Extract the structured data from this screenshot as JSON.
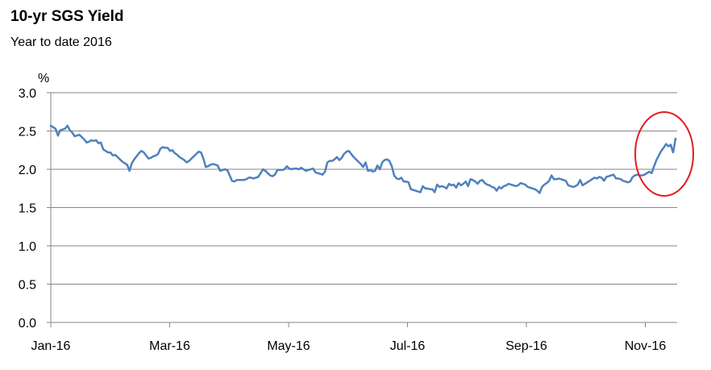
{
  "chart_data": {
    "type": "line",
    "title": "10-yr SGS Yield",
    "subtitle": "Year to date 2016",
    "ylabel": "%",
    "xlabel": "",
    "ylim": [
      0,
      3
    ],
    "y_ticks": [
      "0.0",
      "0.5",
      "1.0",
      "1.5",
      "2.0",
      "2.5",
      "3.0"
    ],
    "x_ticks": [
      "Jan-16",
      "Mar-16",
      "May-16",
      "Jul-16",
      "Sep-16",
      "Nov-16"
    ],
    "grid": "horizontal",
    "legend": "none",
    "line_color": "#4F81BD",
    "highlight_color": "#E31B23",
    "series": [
      {
        "values": [
          2.57,
          2.55,
          2.53,
          2.44,
          2.51,
          2.52,
          2.53,
          2.57,
          2.51,
          2.48,
          2.43,
          2.44,
          2.45,
          2.42,
          2.39,
          2.35,
          2.36,
          2.38,
          2.37,
          2.38,
          2.34,
          2.35,
          2.26,
          2.24,
          2.22,
          2.22,
          2.18,
          2.19,
          2.16,
          2.13,
          2.1,
          2.08,
          2.06,
          1.98,
          2.08,
          2.13,
          2.17,
          2.21,
          2.24,
          2.22,
          2.18,
          2.14,
          2.15,
          2.17,
          2.18,
          2.2,
          2.27,
          2.29,
          2.28,
          2.28,
          2.24,
          2.25,
          2.21,
          2.19,
          2.16,
          2.14,
          2.12,
          2.09,
          2.11,
          2.14,
          2.17,
          2.2,
          2.23,
          2.22,
          2.14,
          2.03,
          2.04,
          2.06,
          2.07,
          2.06,
          2.05,
          1.98,
          1.99,
          2.0,
          1.99,
          1.92,
          1.85,
          1.84,
          1.86,
          1.86,
          1.86,
          1.86,
          1.87,
          1.89,
          1.89,
          1.88,
          1.89,
          1.9,
          1.95,
          2.0,
          1.98,
          1.95,
          1.92,
          1.91,
          1.93,
          1.99,
          1.99,
          1.99,
          2.0,
          2.04,
          2.01,
          2.0,
          2.01,
          2.01,
          2.0,
          2.02,
          2.0,
          1.98,
          1.99,
          2.0,
          2.01,
          1.96,
          1.95,
          1.94,
          1.93,
          1.97,
          2.09,
          2.11,
          2.11,
          2.13,
          2.16,
          2.12,
          2.15,
          2.2,
          2.23,
          2.24,
          2.2,
          2.16,
          2.13,
          2.1,
          2.07,
          2.03,
          2.09,
          1.98,
          1.99,
          1.97,
          1.98,
          2.05,
          2.0,
          2.09,
          2.12,
          2.13,
          2.11,
          2.04,
          1.92,
          1.88,
          1.87,
          1.89,
          1.84,
          1.84,
          1.83,
          1.74,
          1.73,
          1.72,
          1.71,
          1.7,
          1.78,
          1.75,
          1.75,
          1.74,
          1.74,
          1.7,
          1.8,
          1.77,
          1.78,
          1.77,
          1.75,
          1.81,
          1.79,
          1.8,
          1.76,
          1.82,
          1.79,
          1.81,
          1.84,
          1.78,
          1.87,
          1.86,
          1.84,
          1.81,
          1.85,
          1.86,
          1.82,
          1.8,
          1.79,
          1.77,
          1.76,
          1.72,
          1.77,
          1.75,
          1.78,
          1.79,
          1.81,
          1.8,
          1.79,
          1.78,
          1.79,
          1.82,
          1.81,
          1.8,
          1.77,
          1.76,
          1.75,
          1.74,
          1.72,
          1.69,
          1.77,
          1.8,
          1.82,
          1.85,
          1.92,
          1.87,
          1.87,
          1.88,
          1.87,
          1.86,
          1.85,
          1.79,
          1.78,
          1.77,
          1.78,
          1.8,
          1.86,
          1.79,
          1.81,
          1.83,
          1.85,
          1.87,
          1.89,
          1.88,
          1.9,
          1.89,
          1.85,
          1.9,
          1.91,
          1.92,
          1.93,
          1.88,
          1.88,
          1.87,
          1.85,
          1.84,
          1.83,
          1.84,
          1.9,
          1.92,
          1.93,
          1.92,
          1.92,
          1.93,
          1.95,
          1.97,
          1.95,
          2.04,
          2.12,
          2.18,
          2.24,
          2.28,
          2.33,
          2.3,
          2.32,
          2.22,
          2.4
        ]
      }
    ]
  }
}
